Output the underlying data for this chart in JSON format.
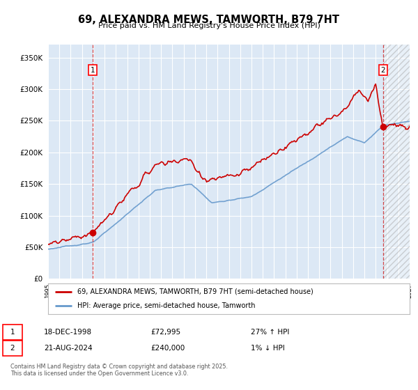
{
  "title": "69, ALEXANDRA MEWS, TAMWORTH, B79 7HT",
  "subtitle": "Price paid vs. HM Land Registry's House Price Index (HPI)",
  "sale1_date": "18-DEC-1998",
  "sale1_price": 72995,
  "sale1_hpi_text": "27% ↑ HPI",
  "sale2_date": "21-AUG-2024",
  "sale2_price": 240000,
  "sale2_hpi_text": "1% ↓ HPI",
  "legend1": "69, ALEXANDRA MEWS, TAMWORTH, B79 7HT (semi-detached house)",
  "legend2": "HPI: Average price, semi-detached house, Tamworth",
  "footer": "Contains HM Land Registry data © Crown copyright and database right 2025.\nThis data is licensed under the Open Government Licence v3.0.",
  "hpi_color": "#6699cc",
  "price_color": "#cc0000",
  "vline_color": "#cc0000",
  "bg_color": "#dce8f5",
  "ylim_max": 370000,
  "ylim_min": 0,
  "marker1_x": 1998.96,
  "marker2_x": 2024.64,
  "xmin": 1995,
  "xmax": 2027
}
